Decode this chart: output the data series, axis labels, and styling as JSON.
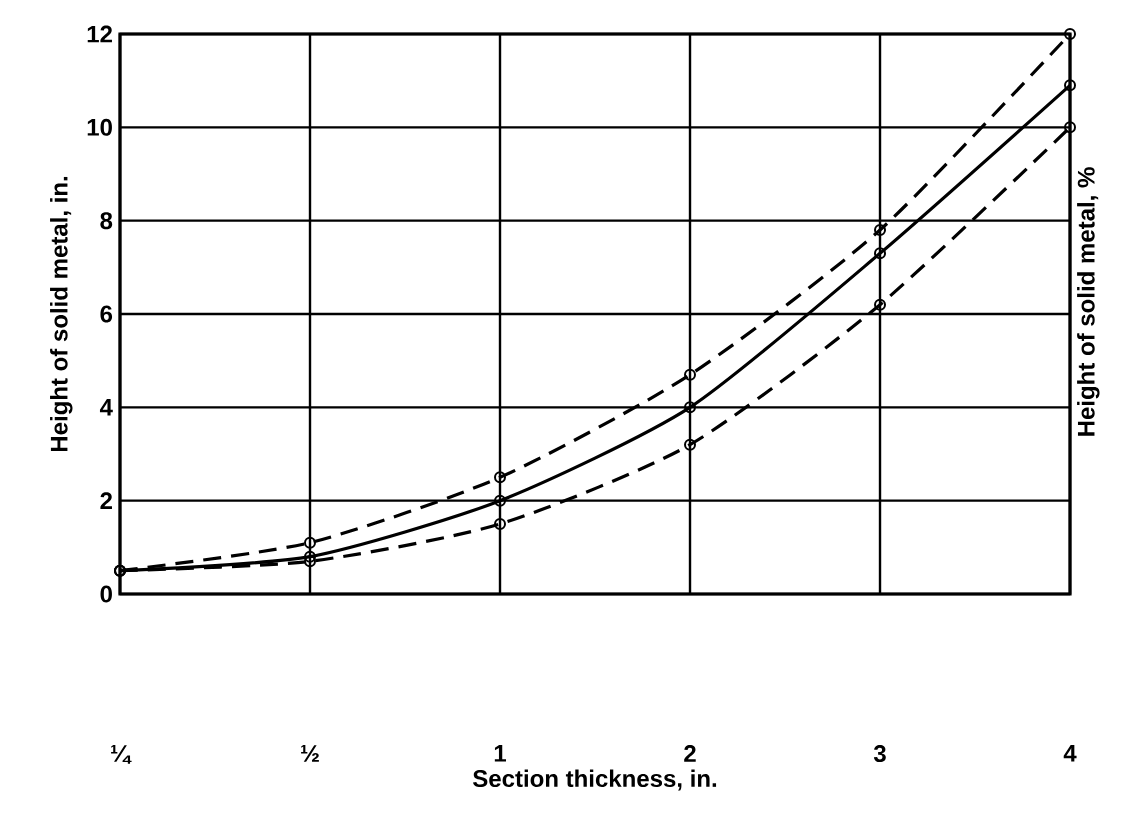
{
  "chart_data": {
    "type": "line",
    "xlabel": "Section thickness, in.",
    "ylabel": "Height of solid metal, in.",
    "y2label": "Height of solid metal, %",
    "categories": [
      "¼",
      "½",
      "1",
      "2",
      "3",
      "4"
    ],
    "ylim": [
      0,
      12
    ],
    "yticks": [
      0,
      2,
      4,
      6,
      8,
      10,
      12
    ],
    "grid": true,
    "marker": "circle",
    "series": [
      {
        "color": "#000000",
        "line_style": "dashed",
        "values": [
          0.5,
          1.1,
          2.5,
          4.7,
          7.8,
          12
        ]
      },
      {
        "color": "#000000",
        "line_style": "solid",
        "values": [
          0.5,
          0.8,
          2.0,
          4.0,
          7.3,
          10.9
        ]
      },
      {
        "color": "#000000",
        "line_style": "dashed",
        "values": [
          0.5,
          0.7,
          1.5,
          3.2,
          6.2,
          10.0
        ]
      }
    ]
  }
}
